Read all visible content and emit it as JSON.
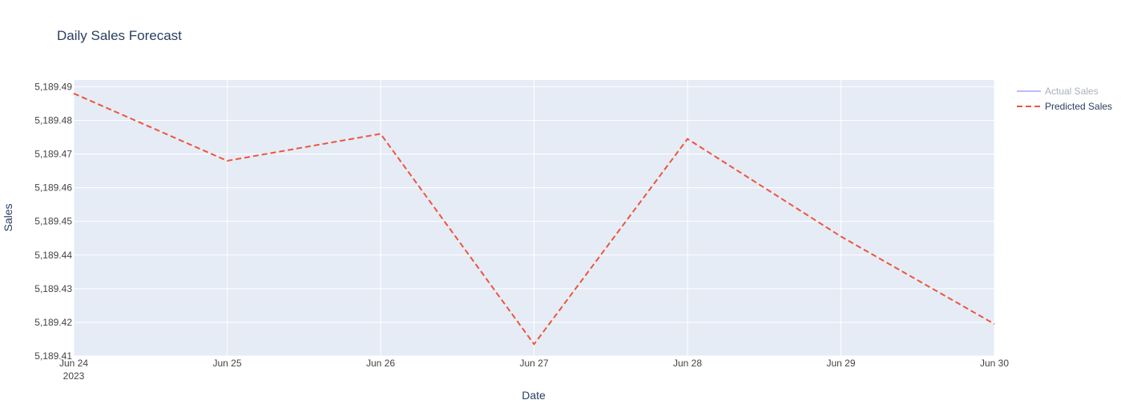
{
  "chart_data": {
    "type": "line",
    "title": "Daily Sales Forecast",
    "xlabel": "Date",
    "ylabel": "Sales",
    "x_ticks": [
      {
        "date": "2023-06-24",
        "label": "Jun 24",
        "sublabel": "2023"
      },
      {
        "date": "2023-06-25",
        "label": "Jun 25",
        "sublabel": ""
      },
      {
        "date": "2023-06-26",
        "label": "Jun 26",
        "sublabel": ""
      },
      {
        "date": "2023-06-27",
        "label": "Jun 27",
        "sublabel": ""
      },
      {
        "date": "2023-06-28",
        "label": "Jun 28",
        "sublabel": ""
      },
      {
        "date": "2023-06-29",
        "label": "Jun 29",
        "sublabel": ""
      },
      {
        "date": "2023-06-30",
        "label": "Jun 30",
        "sublabel": ""
      }
    ],
    "xlim": [
      "2023-06-24",
      "2023-06-30"
    ],
    "y_ticks": [
      {
        "value": 5189.41,
        "label": "5,189.41"
      },
      {
        "value": 5189.42,
        "label": "5,189.42"
      },
      {
        "value": 5189.43,
        "label": "5,189.43"
      },
      {
        "value": 5189.44,
        "label": "5,189.44"
      },
      {
        "value": 5189.45,
        "label": "5,189.45"
      },
      {
        "value": 5189.46,
        "label": "5,189.46"
      },
      {
        "value": 5189.47,
        "label": "5,189.47"
      },
      {
        "value": 5189.48,
        "label": "5,189.48"
      },
      {
        "value": 5189.49,
        "label": "5,189.49"
      }
    ],
    "ylim": [
      5189.41,
      5189.492
    ],
    "grid": true,
    "legend_position": "top-right",
    "series": [
      {
        "name": "Actual Sales",
        "color": "#b9bcf5",
        "dash": "solid",
        "legend_dimmed": true,
        "x": [],
        "y": []
      },
      {
        "name": "Predicted Sales",
        "color": "#EF553B",
        "dash": "dashed",
        "legend_dimmed": false,
        "x": [
          "2023-06-24",
          "2023-06-25",
          "2023-06-26",
          "2023-06-27",
          "2023-06-28",
          "2023-06-29",
          "2023-06-30"
        ],
        "y": [
          5189.488,
          5189.468,
          5189.476,
          5189.4135,
          5189.4745,
          5189.4455,
          5189.4195
        ]
      }
    ]
  },
  "colors": {
    "plot_background": "#e5ecf6",
    "gridline": "#ffffff",
    "text": "#2a3f5f",
    "tick_text": "#444444",
    "title_text": "#2a3f5f",
    "legend_dimmed_text": "#a9b0bc"
  }
}
